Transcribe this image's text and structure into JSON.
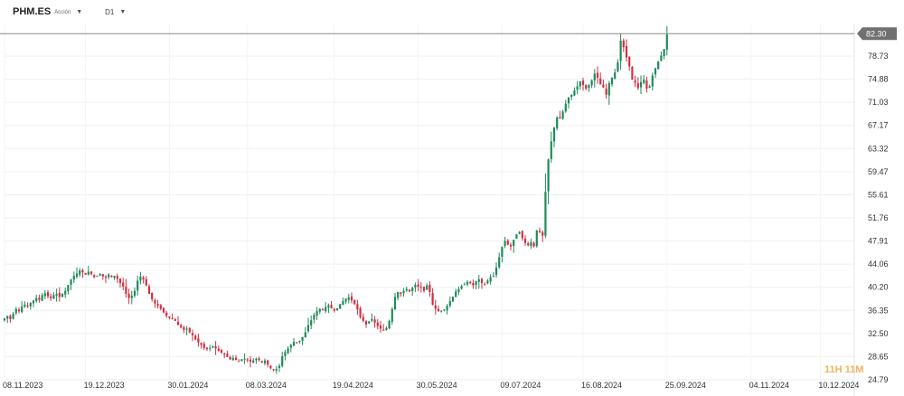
{
  "header": {
    "symbol": "PHM.ES",
    "subtitle": "Acción",
    "timeframe": "D1"
  },
  "watermark": "11H 11M",
  "colors": {
    "up": "#1f8a5a",
    "down": "#d32f3f",
    "price_line": "#888888",
    "price_label_bg": "#707070",
    "watermark": "#f0b35a"
  },
  "chart_data": {
    "type": "candlestick",
    "title": "",
    "xlabel": "",
    "ylabel": "",
    "current_price": "82.30",
    "y_ticks": [
      "78.73",
      "74.88",
      "71.03",
      "67.17",
      "63.32",
      "59.47",
      "55.61",
      "51.76",
      "47.91",
      "44.06",
      "40.20",
      "36.35",
      "32.50",
      "28.65",
      "24.79"
    ],
    "y_range": [
      24.79,
      86.0
    ],
    "x_ticks": [
      "08.11.2023",
      "19.12.2023",
      "30.01.2024",
      "08.03.2024",
      "19.04.2024",
      "30.05.2024",
      "09.07.2024",
      "16.08.2024",
      "25.09.2024",
      "04.11.2024",
      "10.12.2024"
    ],
    "x_tick_index": [
      0,
      28,
      57,
      84,
      114,
      143,
      172,
      200,
      229,
      258,
      282
    ],
    "closes": [
      35.0,
      35.4,
      34.9,
      35.8,
      36.6,
      36.2,
      37.0,
      37.3,
      37.0,
      37.6,
      38.0,
      38.4,
      38.1,
      38.9,
      39.2,
      38.7,
      38.4,
      38.9,
      39.1,
      38.6,
      39.1,
      39.6,
      40.6,
      41.5,
      42.1,
      42.5,
      43.0,
      42.7,
      42.3,
      42.8,
      42.4,
      41.9,
      42.1,
      42.4,
      42.0,
      41.8,
      42.3,
      41.9,
      42.1,
      41.6,
      40.9,
      40.3,
      39.1,
      38.4,
      38.8,
      39.6,
      41.3,
      42.0,
      41.5,
      40.5,
      39.1,
      38.2,
      37.5,
      37.1,
      36.6,
      36.0,
      35.4,
      35.1,
      34.9,
      34.6,
      33.9,
      33.5,
      33.1,
      33.3,
      32.7,
      32.2,
      31.5,
      31.0,
      30.6,
      30.1,
      29.9,
      30.1,
      30.4,
      30.0,
      29.6,
      29.3,
      29.0,
      28.6,
      28.2,
      28.4,
      28.1,
      27.9,
      28.2,
      28.3,
      28.0,
      27.8,
      28.0,
      28.3,
      28.1,
      27.7,
      28.0,
      27.3,
      26.7,
      26.4,
      26.6,
      27.1,
      28.7,
      29.4,
      30.0,
      30.6,
      31.1,
      31.0,
      31.3,
      31.9,
      32.7,
      33.9,
      34.7,
      35.6,
      36.2,
      36.6,
      36.4,
      36.9,
      37.2,
      36.7,
      36.3,
      36.7,
      37.4,
      37.9,
      38.3,
      38.5,
      38.0,
      37.4,
      36.5,
      35.2,
      34.6,
      34.0,
      34.5,
      34.9,
      34.3,
      33.7,
      33.3,
      33.1,
      33.4,
      34.6,
      36.6,
      38.6,
      39.4,
      39.1,
      39.6,
      39.9,
      39.5,
      40.1,
      40.6,
      40.3,
      40.1,
      39.6,
      40.5,
      39.4,
      37.3,
      36.6,
      36.2,
      36.3,
      36.5,
      37.1,
      37.9,
      38.6,
      39.5,
      39.9,
      40.4,
      40.7,
      41.1,
      40.9,
      40.5,
      41.2,
      41.5,
      40.9,
      40.7,
      41.3,
      41.9,
      42.1,
      43.5,
      45.2,
      46.9,
      47.9,
      47.3,
      47.0,
      48.1,
      49.0,
      49.4,
      48.4,
      47.6,
      47.2,
      47.7,
      47.0,
      49.7,
      49.4,
      48.8,
      56.1,
      61.5,
      64.5,
      66.8,
      68.5,
      68.3,
      69.5,
      70.8,
      71.8,
      72.3,
      73.0,
      73.7,
      74.5,
      73.9,
      73.3,
      73.9,
      74.7,
      75.8,
      75.1,
      74.0,
      73.5,
      72.3,
      74.2,
      75.1,
      76.0,
      77.7,
      81.3,
      80.2,
      78.5,
      77.0,
      74.8,
      74.3,
      73.4,
      74.4,
      74.8,
      73.3,
      73.7,
      75.5,
      76.7,
      77.8,
      78.8,
      79.9,
      82.3
    ],
    "series": [
      {
        "name": "PHM.ES"
      }
    ]
  }
}
